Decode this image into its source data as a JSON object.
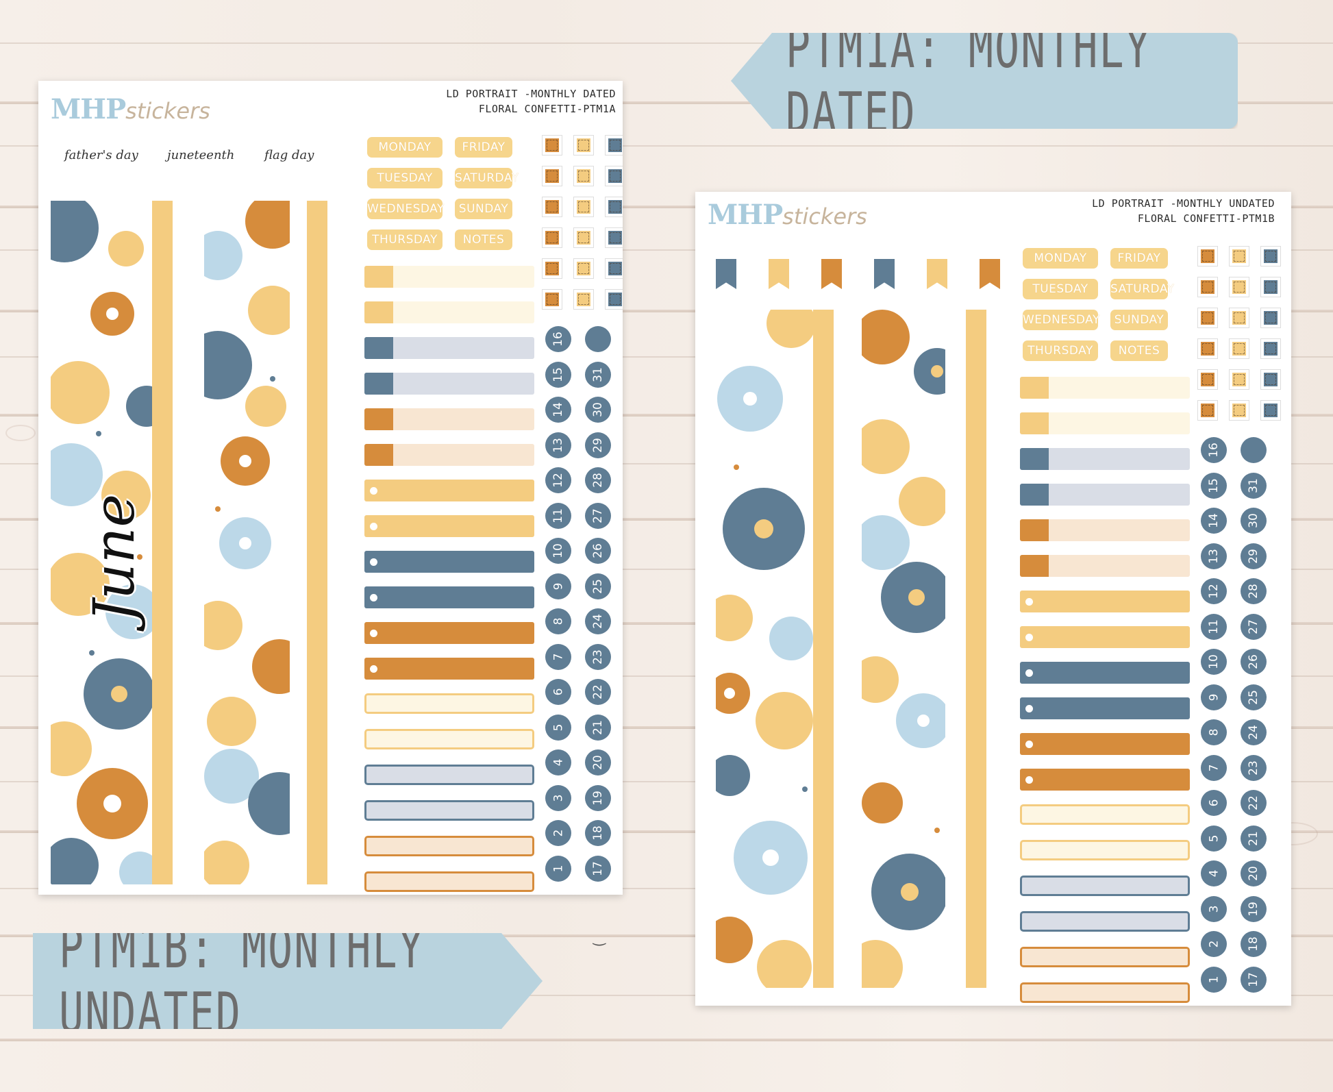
{
  "banners": {
    "dated": "PTM1A: MONTHLY DATED",
    "undated": "PTM1B: MONTHLY UNDATED"
  },
  "sheet_a": {
    "logo_main": "MHP",
    "logo_script": "stickers",
    "title_line1": "LD PORTRAIT -MONTHLY DATED",
    "title_line2": "FLORAL CONFETTI-PTM1A",
    "holidays": [
      "father's day",
      "juneteenth",
      "flag day"
    ],
    "month_label": "June",
    "days": [
      "MONDAY",
      "FRIDAY",
      "TUESDAY",
      "SATURDAY",
      "WEDNESDAY",
      "SUNDAY",
      "THURSDAY",
      "NOTES"
    ]
  },
  "sheet_b": {
    "logo_main": "MHP",
    "logo_script": "stickers",
    "title_line1": "LD PORTRAIT -MONTHLY UNDATED",
    "title_line2": "FLORAL CONFETTI-PTM1B",
    "days": [
      "MONDAY",
      "FRIDAY",
      "TUESDAY",
      "SATURDAY",
      "WEDNESDAY",
      "SUNDAY",
      "THURSDAY",
      "NOTES"
    ]
  },
  "date_numbers_col1": [
    "16",
    "15",
    "14",
    "13",
    "12",
    "11",
    "10",
    "9",
    "8",
    "7",
    "6",
    "5",
    "4",
    "3",
    "2",
    "1"
  ],
  "date_numbers_col2": [
    "",
    "31",
    "30",
    "29",
    "28",
    "27",
    "26",
    "25",
    "24",
    "23",
    "22",
    "21",
    "20",
    "19",
    "18",
    "17"
  ],
  "palette": {
    "navy": "#5f7d94",
    "light_blue": "#bcd8e8",
    "mustard": "#f4cc80",
    "orange": "#d68c3c",
    "cream": "#fdf6e3",
    "grey_blue": "#d9dde6",
    "peach": "#f8e6d2",
    "banner": "#b9d3de"
  }
}
